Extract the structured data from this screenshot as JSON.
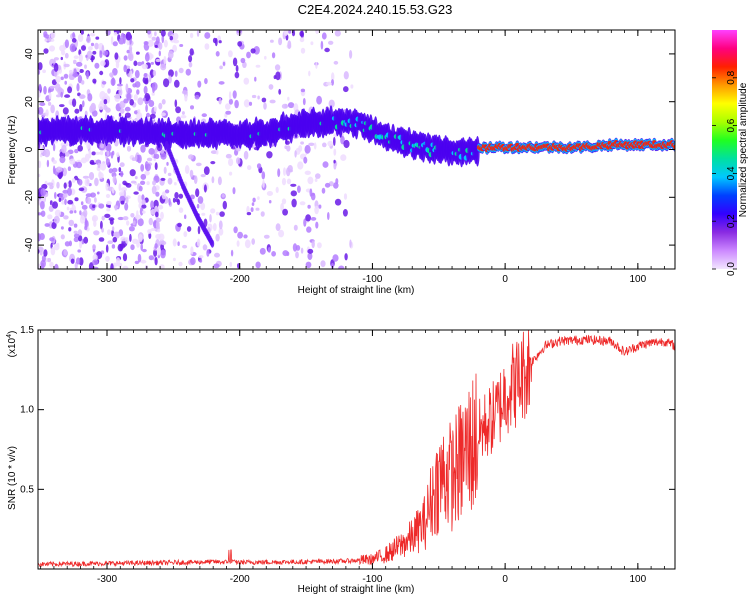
{
  "title": "C2E4.2024.240.15.53.G23",
  "chart_data": [
    {
      "type": "heatmap",
      "xlabel": "Height of straight line (km)",
      "ylabel": "Frequency (Hz)",
      "xlim": [
        -352,
        128
      ],
      "ylim": [
        -50,
        50
      ],
      "xticks": [
        -300,
        -200,
        -100,
        0,
        100
      ],
      "yticks": [
        -40,
        -20,
        0,
        20,
        40
      ],
      "colorbar": {
        "label": "Normalized spectral amplitude",
        "range": [
          0.0,
          1.0
        ],
        "ticks": [
          "0.0",
          "0.2",
          "0.4",
          "0.6",
          "0.8"
        ],
        "tick_values": [
          0.0,
          0.2,
          0.4,
          0.6,
          0.8
        ],
        "colors": [
          "#f2e6ff",
          "#cc88ff",
          "#8a2be2",
          "#3300ff",
          "#0040ff",
          "#00c8ff",
          "#00e0a0",
          "#20ff20",
          "#aaff00",
          "#ffff00",
          "#ff9900",
          "#ff2000",
          "#ff0080",
          "#ff40ff"
        ]
      },
      "ridge": {
        "x": [
          -352,
          -300,
          -260,
          -240,
          -220,
          -200,
          -180,
          -160,
          -140,
          -120,
          -110,
          -100,
          -90,
          -80,
          -60,
          -40,
          -30,
          -20,
          -10,
          0,
          20,
          40,
          60,
          80,
          100,
          128
        ],
        "y": [
          8,
          8,
          7,
          6,
          7,
          6,
          7,
          10,
          11,
          12,
          11,
          8,
          5,
          4,
          1,
          -1,
          -1,
          0,
          1,
          1,
          1,
          1,
          1,
          2,
          2,
          2
        ]
      },
      "branch": {
        "x": [
          -255,
          -243,
          -232,
          -220
        ],
        "y": [
          2,
          -15,
          -28,
          -40
        ]
      },
      "noise_region": [
        -352,
        -115
      ]
    },
    {
      "type": "line",
      "xlabel": "Height of straight line (km)",
      "ylabel": "SNR (10 * v/v)",
      "multiplier": "(x10",
      "multiplier_exp": "4",
      "xlim": [
        -352,
        128
      ],
      "ylim": [
        0,
        15000
      ],
      "xticks": [
        -300,
        -200,
        -100,
        0,
        100
      ],
      "yticks": [
        5000,
        10000,
        15000
      ],
      "ytick_labels": [
        "0.5",
        "1.0",
        "1.5"
      ],
      "color": "#ee2a2a",
      "series": [
        {
          "x": [
            -352,
            -300,
            -250,
            -220,
            -200,
            -150,
            -120,
            -100,
            -90,
            -80,
            -70,
            -60,
            -55,
            -50,
            -45,
            -40,
            -35,
            -30,
            -25,
            -20,
            -15,
            -10,
            -5,
            0,
            5,
            10,
            20,
            30,
            40,
            60,
            80,
            90,
            100,
            110,
            120,
            128
          ],
          "y": [
            300,
            350,
            400,
            450,
            420,
            450,
            500,
            600,
            900,
            1400,
            2000,
            3000,
            4500,
            5500,
            6000,
            5800,
            6500,
            7200,
            7800,
            8500,
            9000,
            9400,
            10000,
            11000,
            11500,
            11800,
            13000,
            14000,
            14300,
            14400,
            14300,
            13600,
            14000,
            14200,
            14300,
            14000
          ]
        }
      ]
    }
  ]
}
